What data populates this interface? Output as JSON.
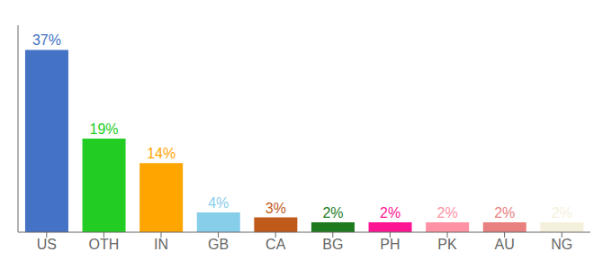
{
  "chart_data": {
    "type": "bar",
    "categories": [
      "US",
      "OTH",
      "IN",
      "GB",
      "CA",
      "BG",
      "PH",
      "PK",
      "AU",
      "NG"
    ],
    "values": [
      37,
      19,
      14,
      4,
      3,
      2,
      2,
      2,
      2,
      2
    ],
    "value_labels": [
      "37%",
      "19%",
      "14%",
      "4%",
      "3%",
      "2%",
      "2%",
      "2%",
      "2%",
      "2%"
    ],
    "colors": [
      "#4472C4",
      "#22CC22",
      "#FFA500",
      "#87CEEB",
      "#C05A1A",
      "#1E7A1E",
      "#FF1493",
      "#FF91A4",
      "#E88080",
      "#F5F0DC"
    ],
    "ylim": [
      0,
      42
    ],
    "data_labels": true,
    "tick_labels": "x",
    "grid": false
  }
}
